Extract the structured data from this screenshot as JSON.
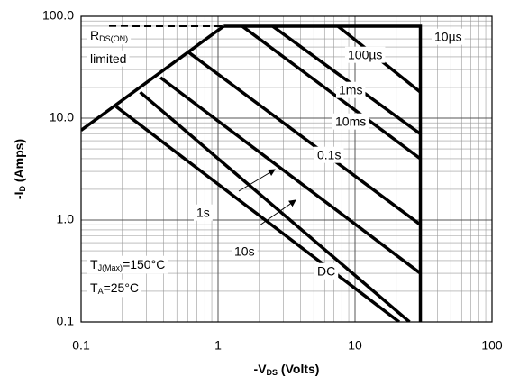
{
  "chart_data": {
    "type": "line",
    "log_x": true,
    "log_y": true,
    "grid": true,
    "xlabel": [
      "-V",
      "DS",
      " (Volts)"
    ],
    "ylabel": [
      "-I",
      "D",
      " (Amps)"
    ],
    "xlim": [
      0.1,
      100
    ],
    "xticks": [
      0.1,
      1,
      10,
      100
    ],
    "ylim": [
      0.1,
      100
    ],
    "yticks": [
      {
        "value": 0.1,
        "label": "0.1"
      },
      {
        "value": 1,
        "label": "1.0"
      },
      {
        "value": 10,
        "label": "10.0"
      },
      {
        "value": 100,
        "label": "100.0"
      }
    ],
    "color": "#000000",
    "series": [
      {
        "x": [
          0.1,
          1.1
        ],
        "values": [
          7.6,
          80
        ]
      },
      {
        "x": [
          0.16,
          1.1
        ],
        "values": [
          80,
          80
        ],
        "dashed": true
      },
      {
        "name": "10µs",
        "x": [
          1.1,
          30,
          30
        ],
        "values": [
          80,
          80,
          0.1
        ]
      },
      {
        "name": "100µs",
        "x": [
          7.5,
          30
        ],
        "values": [
          80,
          18
        ]
      },
      {
        "name": "1ms",
        "x": [
          2.5,
          30
        ],
        "values": [
          80,
          7
        ]
      },
      {
        "name": "10ms",
        "x": [
          1.5,
          30
        ],
        "values": [
          80,
          4
        ]
      },
      {
        "name": "0.1s",
        "x": [
          0.6,
          30
        ],
        "values": [
          45,
          0.9
        ]
      },
      {
        "name": "1s",
        "x": [
          0.38,
          30
        ],
        "values": [
          25,
          0.3
        ]
      },
      {
        "name": "10s",
        "x": [
          0.27,
          25
        ],
        "values": [
          18,
          0.1
        ]
      },
      {
        "name": "DC",
        "x": [
          0.18,
          21
        ],
        "values": [
          13,
          0.1
        ]
      }
    ],
    "annotations": [
      {
        "text": "R",
        "sub": "DS(ON)"
      },
      {
        "text": "limited"
      },
      {
        "text": "T",
        "sub": "J(Max)",
        "after": "=150°C"
      },
      {
        "text": "T",
        "sub": "A",
        "after": "=25°C"
      }
    ]
  }
}
